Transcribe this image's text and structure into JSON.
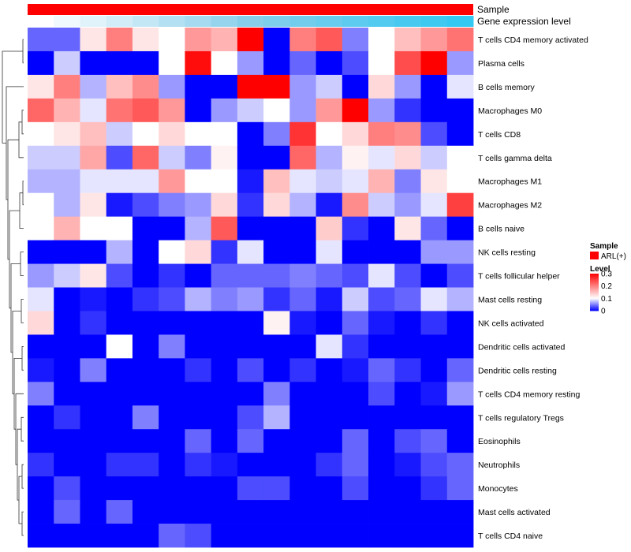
{
  "chart_data": {
    "type": "heatmap",
    "annotation_rows": [
      {
        "name": "Sample",
        "color": "#ff0000"
      },
      {
        "name": "Gene expression level",
        "gradient": [
          "#ffffff",
          "#87ceeb",
          "#33c8f2"
        ]
      }
    ],
    "rows": [
      "T cells CD4 memory activated",
      "Plasma cells",
      "B cells memory",
      "Macrophages M0",
      "T cells CD8",
      "T cells gamma delta",
      "Macrophages M1",
      "Macrophages M2",
      "B cells naive",
      "NK cells resting",
      "T cells follicular helper",
      "Mast cells resting",
      "NK cells activated",
      "Dendritic cells activated",
      "Dendritic cells resting",
      "T cells CD4 memory resting",
      "T cells regulatory  Tregs",
      "Eosinophils",
      "Neutrophils",
      "Monocytes",
      "Mast cells activated",
      "T cells CD4 naive"
    ],
    "values": [
      [
        0.04,
        0.04,
        0.12,
        0.2,
        0.12,
        0.1,
        0.18,
        0.16,
        0.3,
        0.0,
        0.2,
        0.23,
        0.05,
        0.1,
        0.15,
        0.18,
        0.21
      ],
      [
        0.0,
        0.08,
        0.0,
        0.0,
        0.0,
        0.1,
        0.29,
        0.1,
        0.06,
        0.0,
        0.04,
        0.0,
        0.03,
        0.1,
        0.24,
        0.3,
        0.06
      ],
      [
        0.12,
        0.2,
        0.07,
        0.15,
        0.19,
        0.06,
        0.0,
        0.0,
        0.3,
        0.3,
        0.06,
        0.08,
        0.0,
        0.13,
        0.06,
        0.0,
        0.09
      ],
      [
        0.22,
        0.16,
        0.09,
        0.21,
        0.23,
        0.18,
        0.0,
        0.06,
        0.08,
        0.1,
        0.06,
        0.18,
        0.3,
        0.06,
        0.02,
        0.0,
        0.0
      ],
      [
        0.1,
        0.12,
        0.15,
        0.08,
        0.1,
        0.13,
        0.1,
        0.1,
        0.0,
        0.05,
        0.26,
        0.1,
        0.13,
        0.2,
        0.19,
        0.03,
        0.0
      ],
      [
        0.08,
        0.08,
        0.17,
        0.03,
        0.22,
        0.08,
        0.05,
        0.11,
        0.0,
        0.0,
        0.22,
        0.07,
        0.11,
        0.09,
        0.13,
        0.08,
        0.1
      ],
      [
        0.07,
        0.07,
        0.09,
        0.09,
        0.09,
        0.18,
        0.1,
        0.1,
        0.01,
        0.15,
        0.09,
        0.08,
        0.09,
        0.16,
        0.05,
        0.12,
        0.1
      ],
      [
        0.1,
        0.07,
        0.12,
        0.01,
        0.03,
        0.05,
        0.06,
        0.13,
        0.02,
        0.13,
        0.07,
        0.01,
        0.19,
        0.08,
        0.06,
        0.09,
        0.25
      ],
      [
        0.1,
        0.16,
        0.1,
        0.1,
        0.0,
        0.0,
        0.07,
        0.23,
        0.0,
        0.0,
        0.0,
        0.14,
        0.02,
        0.0,
        0.12,
        0.04,
        0.0
      ],
      [
        0.0,
        0.0,
        0.0,
        0.07,
        0.0,
        0.1,
        0.13,
        0.02,
        0.09,
        0.0,
        0.0,
        0.09,
        0.0,
        0.0,
        0.0,
        0.06,
        0.06
      ],
      [
        0.06,
        0.08,
        0.12,
        0.03,
        0.0,
        0.02,
        0.0,
        0.04,
        0.04,
        0.04,
        0.05,
        0.04,
        0.03,
        0.09,
        0.03,
        0.0,
        0.03
      ],
      [
        0.09,
        0.0,
        0.01,
        0.0,
        0.02,
        0.03,
        0.07,
        0.05,
        0.06,
        0.02,
        0.04,
        0.01,
        0.08,
        0.03,
        0.04,
        0.09,
        0.07
      ],
      [
        0.13,
        0.0,
        0.02,
        0.0,
        0.0,
        0.0,
        0.0,
        0.0,
        0.0,
        0.11,
        0.01,
        0.0,
        0.04,
        0.01,
        0.0,
        0.02,
        0.0
      ],
      [
        0.0,
        0.0,
        0.0,
        0.1,
        0.0,
        0.05,
        0.0,
        0.0,
        0.0,
        0.0,
        0.0,
        0.09,
        0.02,
        0.0,
        0.0,
        0.0,
        0.0
      ],
      [
        0.01,
        0.0,
        0.05,
        0.0,
        0.0,
        0.0,
        0.02,
        0.0,
        0.03,
        0.0,
        0.02,
        0.0,
        0.01,
        0.04,
        0.02,
        0.0,
        0.04
      ],
      [
        0.05,
        0.0,
        0.0,
        0.0,
        0.0,
        0.0,
        0.0,
        0.0,
        0.0,
        0.05,
        0.0,
        0.0,
        0.0,
        0.03,
        0.0,
        0.01,
        0.06
      ],
      [
        0.0,
        0.02,
        0.0,
        0.0,
        0.05,
        0.0,
        0.0,
        0.0,
        0.03,
        0.07,
        0.0,
        0.0,
        0.0,
        0.0,
        0.0,
        0.0,
        0.0
      ],
      [
        0.0,
        0.0,
        0.0,
        0.0,
        0.0,
        0.0,
        0.04,
        0.0,
        0.04,
        0.0,
        0.0,
        0.0,
        0.04,
        0.0,
        0.03,
        0.04,
        0.0
      ],
      [
        0.02,
        0.0,
        0.0,
        0.02,
        0.02,
        0.0,
        0.02,
        0.01,
        0.0,
        0.0,
        0.0,
        0.02,
        0.04,
        0.0,
        0.01,
        0.03,
        0.04
      ],
      [
        0.0,
        0.03,
        0.0,
        0.0,
        0.0,
        0.0,
        0.0,
        0.0,
        0.03,
        0.03,
        0.0,
        0.0,
        0.03,
        0.0,
        0.0,
        0.02,
        0.04
      ],
      [
        0.0,
        0.04,
        0.0,
        0.04,
        0.0,
        0.0,
        0.0,
        0.0,
        0.0,
        0.0,
        0.0,
        0.0,
        0.0,
        0.0,
        0.0,
        0.0,
        0.0
      ],
      [
        0.0,
        0.0,
        0.0,
        0.0,
        0.0,
        0.04,
        0.03,
        0.0,
        0.0,
        0.0,
        0.0,
        0.0,
        0.0,
        0.0,
        0.0,
        0.0,
        0.0
      ]
    ],
    "color_scale": {
      "min": 0,
      "mid": 0.1,
      "max": 0.3,
      "low_color": "#0000ff",
      "mid_color": "#ffffff",
      "high_color": "#ff0000"
    },
    "legend": {
      "sample_title": "Sample",
      "sample_entry": "ARL(+)",
      "sample_color": "#ff0000",
      "level_title": "Level",
      "level_ticks": [
        {
          "label": "0.3",
          "value": 0.3
        },
        {
          "label": "0.2",
          "value": 0.2
        },
        {
          "label": "0.1",
          "value": 0.1
        },
        {
          "label": "0",
          "value": 0.0
        }
      ]
    }
  }
}
